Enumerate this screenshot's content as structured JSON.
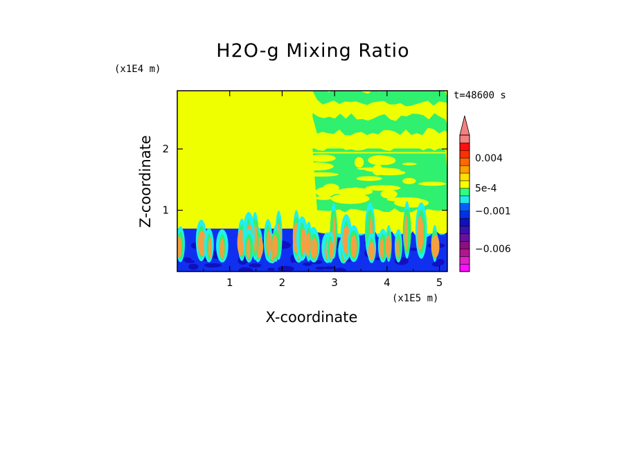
{
  "chart_data": {
    "type": "heatmap",
    "title": "H2O-g Mixing Ratio",
    "xlabel": "X-coordinate",
    "ylabel": "Z-coordinate",
    "x_unit": "(x1E5 m)",
    "y_unit": "(x1E4 m)",
    "time_label": "t=48600 s",
    "xlim": [
      0,
      5.15
    ],
    "ylim": [
      0,
      2.95
    ],
    "x_ticks": [
      {
        "value": 1,
        "label": "1"
      },
      {
        "value": 2,
        "label": "2"
      },
      {
        "value": 3,
        "label": "3"
      },
      {
        "value": 4,
        "label": "4"
      },
      {
        "value": 5,
        "label": "5"
      }
    ],
    "y_ticks": [
      {
        "value": 1,
        "label": "1"
      },
      {
        "value": 2,
        "label": "2"
      }
    ],
    "colorbar": {
      "levels": [
        -0.009,
        -0.008,
        -0.007,
        -0.006,
        -0.005,
        -0.004,
        -0.003,
        -0.002,
        -0.001,
        -0.0005,
        0,
        0.0005,
        0.001,
        0.002,
        0.003,
        0.004,
        0.005,
        0.006,
        0.007
      ],
      "colors": [
        "#ff10ff",
        "#e020c8",
        "#b01690",
        "#8a1080",
        "#6a10a0",
        "#3a10b0",
        "#1010c0",
        "#0030e8",
        "#0060ff",
        "#20e8e8",
        "#30ff80",
        "#ffff00",
        "#ffe000",
        "#ffa000",
        "#ff6a00",
        "#ff3000",
        "#ff1010",
        "#f58080"
      ],
      "extend_color": "#f58080",
      "tick_labels": [
        {
          "value": 0.004,
          "label": "0.004"
        },
        {
          "value": 0.0005,
          "label": "5e-4"
        },
        {
          "value": -0.001,
          "label": "−0.001"
        },
        {
          "value": -0.006,
          "label": "−0.006"
        }
      ]
    },
    "field_colors": {
      "background": "#f0ff00",
      "green": "#30f070",
      "cyan": "#20f0f0",
      "blue": "#1030f0",
      "dark_blue": "#1010c0",
      "orange": "#f5a040"
    }
  }
}
